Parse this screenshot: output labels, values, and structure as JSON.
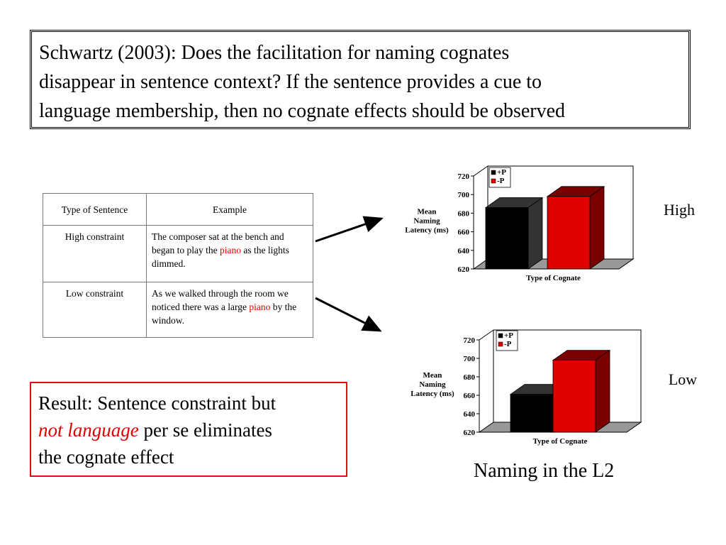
{
  "title": [
    "Schwartz (2003): Does the facilitation for naming cognates",
    "disappear in sentence context? If the sentence provides a cue to",
    "language membership, then no cognate effects should be observed"
  ],
  "table": {
    "header": [
      "Type of Sentence",
      "Example"
    ],
    "rows": [
      [
        "High constraint",
        [
          "The composer sat at the bench and began to play the ",
          "piano",
          " as the lights dimmed."
        ]
      ],
      [
        "Low constraint",
        [
          "As we walked through the room we noticed there was a large ",
          "piano",
          " by the window."
        ]
      ]
    ]
  },
  "result": [
    "Result: Sentence constraint but",
    "not language",
    " per se eliminates",
    "the cognate effect"
  ],
  "caption": "Naming in the L2",
  "chart_data": [
    {
      "type": "bar",
      "annotation": "High",
      "ylabel": [
        "Mean",
        "Naming",
        "Latency (ms)"
      ],
      "xlabel": "Type of Cognate",
      "series": [
        {
          "name": "+P",
          "color": "#000000",
          "values": [
            686
          ]
        },
        {
          "name": "-P",
          "color": "#e00000",
          "values": [
            698
          ]
        }
      ],
      "ylim": [
        620,
        720
      ],
      "yticks": [
        620,
        640,
        660,
        680,
        700,
        720
      ]
    },
    {
      "type": "bar",
      "annotation": "Low",
      "ylabel": [
        "Mean",
        "Naming",
        "Latency (ms)"
      ],
      "xlabel": "Type of Cognate",
      "series": [
        {
          "name": "+P",
          "color": "#000000",
          "values": [
            661
          ]
        },
        {
          "name": "-P",
          "color": "#e00000",
          "values": [
            698
          ]
        }
      ],
      "ylim": [
        620,
        720
      ],
      "yticks": [
        620,
        640,
        660,
        680,
        700,
        720
      ]
    }
  ]
}
